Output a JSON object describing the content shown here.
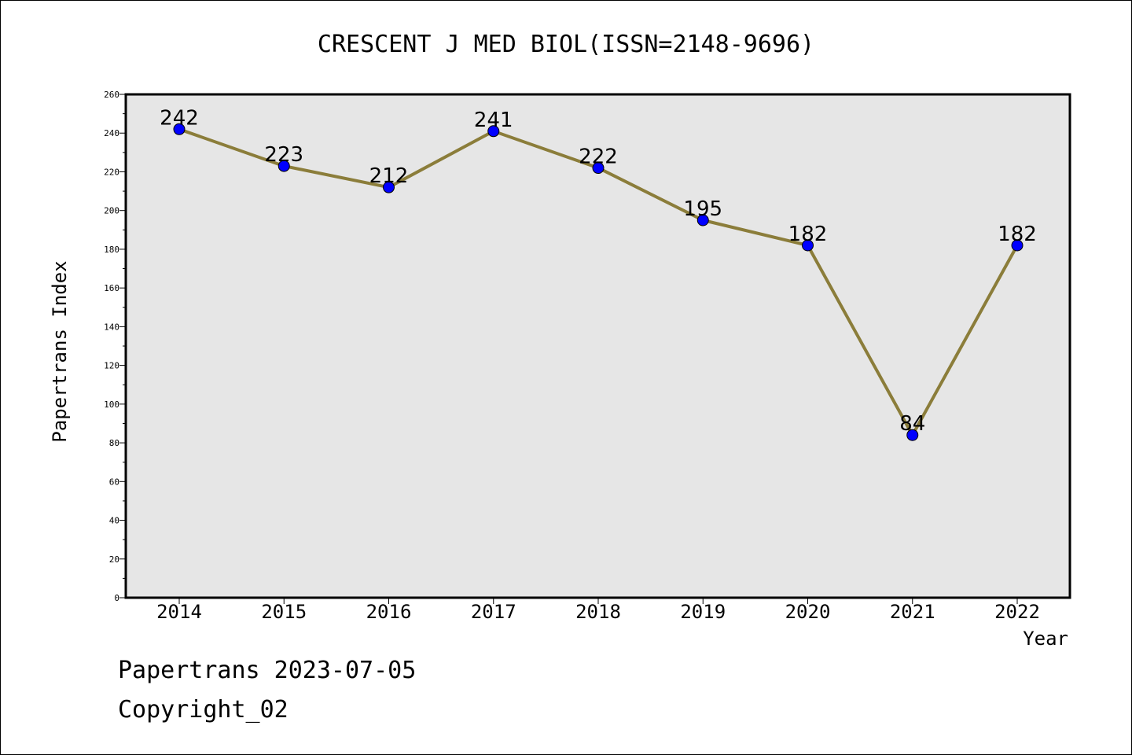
{
  "chart_data": {
    "type": "line",
    "title": "CRESCENT J MED BIOL(ISSN=2148-9696)",
    "xlabel": "Year",
    "ylabel": "Papertrans Index",
    "categories": [
      "2014",
      "2015",
      "2016",
      "2017",
      "2018",
      "2019",
      "2020",
      "2021",
      "2022"
    ],
    "series": [
      {
        "values": [
          242,
          223,
          212,
          241,
          222,
          195,
          182,
          84,
          182
        ]
      }
    ],
    "data_labels": [
      "242",
      "223",
      "212",
      "241",
      "222",
      "195",
      "182",
      "84",
      "182"
    ],
    "ylim": [
      0,
      260
    ],
    "y_ticks": [
      "0",
      "20",
      "40",
      "60",
      "80",
      "100",
      "120",
      "140",
      "160",
      "180",
      "200",
      "220",
      "240",
      "260"
    ],
    "grid": false,
    "legend": "none",
    "colors": {
      "line": "#8B7D3A",
      "marker": "#0000FF",
      "plot_background": "#E6E6E6"
    }
  },
  "footer": {
    "line1": "Papertrans 2023-07-05",
    "line2": "Copyright_02"
  }
}
